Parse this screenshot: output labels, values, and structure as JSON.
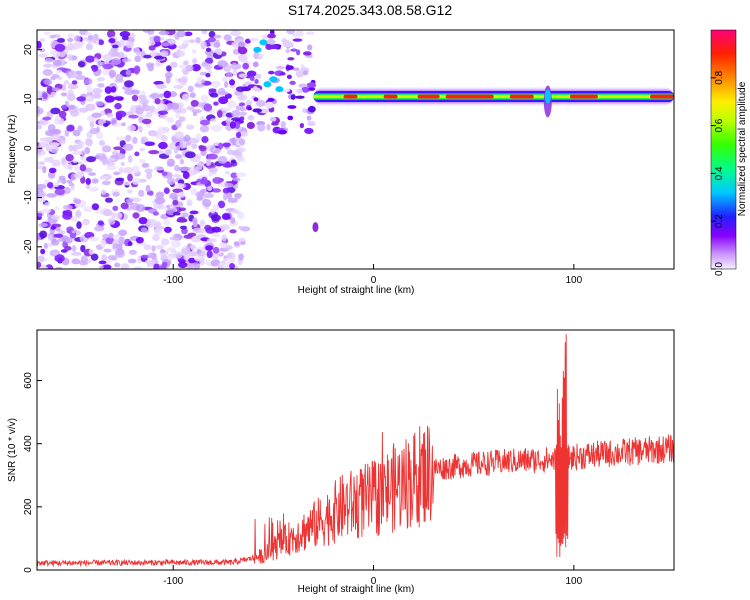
{
  "title": "S174.2025.343.08.58.G12",
  "chart_data": [
    {
      "type": "heatmap",
      "xlabel": "Height of straight line (km)",
      "ylabel": "Frequency (Hz)",
      "xlim": [
        -168,
        150
      ],
      "ylim": [
        -24.5,
        24
      ],
      "xticks": [
        -100,
        0,
        100
      ],
      "yticks": [
        -20,
        -10,
        0,
        10,
        20
      ],
      "ridge": {
        "frequency_hz": 10.5,
        "x_start_km": -30,
        "x_end_km": 150
      },
      "noise_region_x_km": [
        -168,
        -68
      ],
      "colorbar": {
        "label": "Normalized spectral amplitude",
        "ticks": [
          0.0,
          0.2,
          0.4,
          0.6,
          0.8
        ],
        "range": [
          0,
          1
        ],
        "tick_labels": [
          "0.0",
          "0.2",
          "0.4",
          "0.6",
          "0.8"
        ]
      },
      "xtick_labels": [
        "-100",
        "0",
        "100"
      ],
      "ytick_labels": [
        "-20",
        "-10",
        "0",
        "10",
        "20"
      ]
    },
    {
      "type": "line",
      "xlabel": "Height of straight line (km)",
      "ylabel": "SNR (10 * v/v)",
      "xlim": [
        -168,
        150
      ],
      "ylim": [
        0,
        760
      ],
      "xticks": [
        -100,
        0,
        100
      ],
      "yticks": [
        0,
        200,
        400,
        600
      ],
      "color": "#ee3333",
      "trend_points": [
        {
          "x": -168,
          "y": 22
        },
        {
          "x": -70,
          "y": 24
        },
        {
          "x": -55,
          "y": 45
        },
        {
          "x": -45,
          "y": 90
        },
        {
          "x": -30,
          "y": 140
        },
        {
          "x": -15,
          "y": 200
        },
        {
          "x": 0,
          "y": 225
        },
        {
          "x": 10,
          "y": 260
        },
        {
          "x": 20,
          "y": 290
        },
        {
          "x": 30,
          "y": 320
        },
        {
          "x": 50,
          "y": 335
        },
        {
          "x": 70,
          "y": 345
        },
        {
          "x": 90,
          "y": 350
        },
        {
          "x": 110,
          "y": 365
        },
        {
          "x": 130,
          "y": 375
        },
        {
          "x": 150,
          "y": 385
        }
      ],
      "spike": {
        "x_km": 94,
        "peak": 760
      },
      "xtick_labels": [
        "-100",
        "0",
        "100"
      ],
      "ytick_labels": [
        "0",
        "200",
        "400",
        "600"
      ]
    }
  ]
}
